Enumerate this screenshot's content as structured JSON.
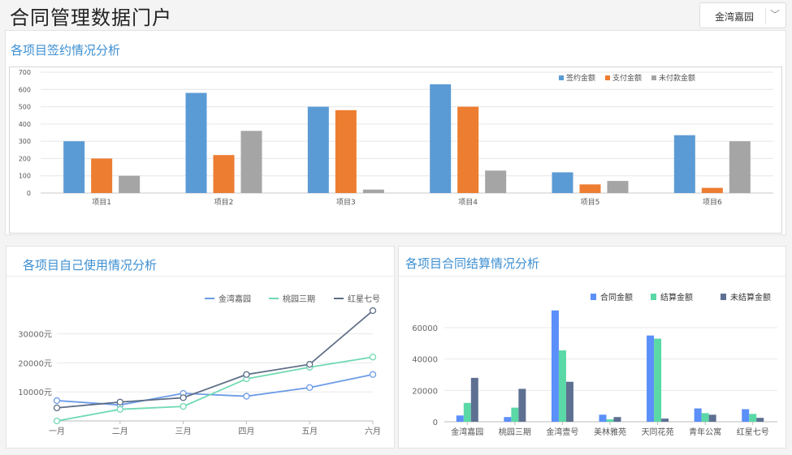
{
  "header": {
    "title": "合同管理数据门户",
    "selector_value": "金湾嘉园",
    "selector_icon": "chevron-down-icon"
  },
  "panels": {
    "top_title": "各项目签约情况分析",
    "left_title": "各项目自己使用情况分析",
    "right_title": "各项目合同结算情况分析"
  },
  "chart_data": [
    {
      "type": "bar",
      "title": "",
      "categories": [
        "项目1",
        "项目2",
        "项目3",
        "项目4",
        "项目5",
        "项目6"
      ],
      "series": [
        {
          "name": "签约金额",
          "color": "#5b9bd5",
          "values": [
            300,
            580,
            500,
            630,
            120,
            335
          ]
        },
        {
          "name": "支付金额",
          "color": "#ed7d31",
          "values": [
            200,
            220,
            480,
            500,
            50,
            30
          ]
        },
        {
          "name": "未付款金额",
          "color": "#a5a5a5",
          "values": [
            100,
            360,
            20,
            130,
            70,
            300
          ]
        }
      ],
      "ylim": [
        0,
        700
      ],
      "yticks": [
        "0",
        "100",
        "200",
        "300",
        "400",
        "500",
        "600",
        "700"
      ],
      "legend": "top-right",
      "grid": true
    },
    {
      "type": "line",
      "title": "",
      "categories": [
        "一月",
        "二月",
        "三月",
        "四月",
        "五月",
        "六月"
      ],
      "series": [
        {
          "name": "金湾嘉园",
          "color": "#6c9be8",
          "values": [
            7000,
            5500,
            9500,
            8500,
            11500,
            16000
          ]
        },
        {
          "name": "桃园三期",
          "color": "#6fd9b2",
          "values": [
            0,
            4000,
            5000,
            14500,
            18500,
            22000
          ]
        },
        {
          "name": "红星七号",
          "color": "#5e6d86",
          "values": [
            4500,
            6500,
            8000,
            16000,
            19500,
            38000
          ]
        }
      ],
      "ylim": [
        0,
        38000
      ],
      "yticks": [
        "10000元",
        "20000元",
        "30000元"
      ],
      "legend": "top-right",
      "grid": true
    },
    {
      "type": "bar",
      "title": "",
      "categories": [
        "金湾嘉园",
        "桃园三期",
        "金湾壹号",
        "美林雅苑",
        "天同花苑",
        "青年公寓",
        "红星七号"
      ],
      "series": [
        {
          "name": "合同金额",
          "color": "#5b8ff9",
          "values": [
            4000,
            3000,
            71000,
            4500,
            55000,
            8500,
            8000
          ]
        },
        {
          "name": "结算金额",
          "color": "#5ad8a6",
          "values": [
            12000,
            9000,
            45500,
            1500,
            53000,
            5500,
            5000
          ]
        },
        {
          "name": "未结算金额",
          "color": "#5d7092",
          "values": [
            28000,
            21000,
            25500,
            3000,
            2000,
            4500,
            2500
          ]
        }
      ],
      "ylim": [
        0,
        71000
      ],
      "yticks": [
        "0",
        "20000",
        "40000",
        "60000"
      ],
      "legend": "top-right",
      "grid": true
    }
  ]
}
